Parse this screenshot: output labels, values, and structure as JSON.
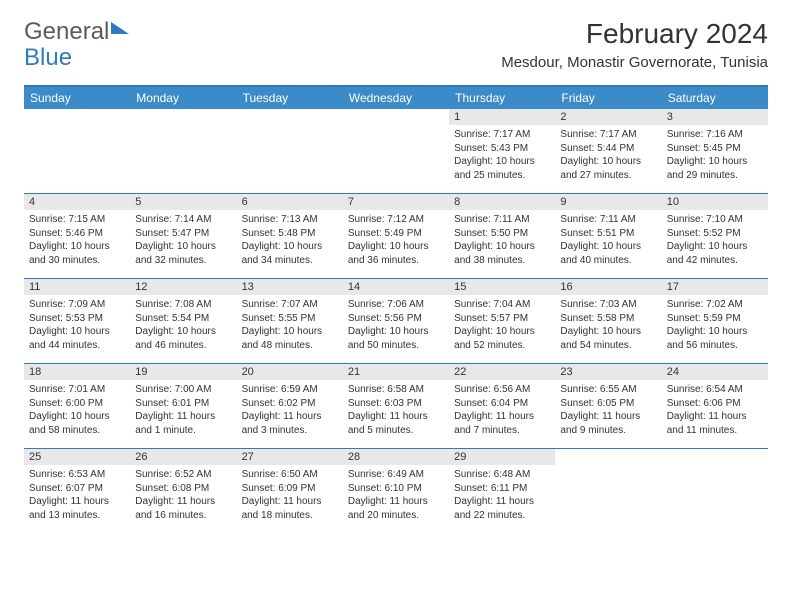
{
  "logo": {
    "text_gray": "General",
    "text_blue": "Blue"
  },
  "title": "February 2024",
  "location": "Mesdour, Monastir Governorate, Tunisia",
  "colors": {
    "header_bg": "#3b8bc9",
    "border": "#2f7bbf",
    "daynum_bg": "#e8e8e8",
    "text": "#333333",
    "logo_gray": "#5a5a5a"
  },
  "day_headers": [
    "Sunday",
    "Monday",
    "Tuesday",
    "Wednesday",
    "Thursday",
    "Friday",
    "Saturday"
  ],
  "weeks": [
    [
      {
        "n": "",
        "empty": true
      },
      {
        "n": "",
        "empty": true
      },
      {
        "n": "",
        "empty": true
      },
      {
        "n": "",
        "empty": true
      },
      {
        "n": "1",
        "sunrise": "7:17 AM",
        "sunset": "5:43 PM",
        "daylight": "10 hours and 25 minutes."
      },
      {
        "n": "2",
        "sunrise": "7:17 AM",
        "sunset": "5:44 PM",
        "daylight": "10 hours and 27 minutes."
      },
      {
        "n": "3",
        "sunrise": "7:16 AM",
        "sunset": "5:45 PM",
        "daylight": "10 hours and 29 minutes."
      }
    ],
    [
      {
        "n": "4",
        "sunrise": "7:15 AM",
        "sunset": "5:46 PM",
        "daylight": "10 hours and 30 minutes."
      },
      {
        "n": "5",
        "sunrise": "7:14 AM",
        "sunset": "5:47 PM",
        "daylight": "10 hours and 32 minutes."
      },
      {
        "n": "6",
        "sunrise": "7:13 AM",
        "sunset": "5:48 PM",
        "daylight": "10 hours and 34 minutes."
      },
      {
        "n": "7",
        "sunrise": "7:12 AM",
        "sunset": "5:49 PM",
        "daylight": "10 hours and 36 minutes."
      },
      {
        "n": "8",
        "sunrise": "7:11 AM",
        "sunset": "5:50 PM",
        "daylight": "10 hours and 38 minutes."
      },
      {
        "n": "9",
        "sunrise": "7:11 AM",
        "sunset": "5:51 PM",
        "daylight": "10 hours and 40 minutes."
      },
      {
        "n": "10",
        "sunrise": "7:10 AM",
        "sunset": "5:52 PM",
        "daylight": "10 hours and 42 minutes."
      }
    ],
    [
      {
        "n": "11",
        "sunrise": "7:09 AM",
        "sunset": "5:53 PM",
        "daylight": "10 hours and 44 minutes."
      },
      {
        "n": "12",
        "sunrise": "7:08 AM",
        "sunset": "5:54 PM",
        "daylight": "10 hours and 46 minutes."
      },
      {
        "n": "13",
        "sunrise": "7:07 AM",
        "sunset": "5:55 PM",
        "daylight": "10 hours and 48 minutes."
      },
      {
        "n": "14",
        "sunrise": "7:06 AM",
        "sunset": "5:56 PM",
        "daylight": "10 hours and 50 minutes."
      },
      {
        "n": "15",
        "sunrise": "7:04 AM",
        "sunset": "5:57 PM",
        "daylight": "10 hours and 52 minutes."
      },
      {
        "n": "16",
        "sunrise": "7:03 AM",
        "sunset": "5:58 PM",
        "daylight": "10 hours and 54 minutes."
      },
      {
        "n": "17",
        "sunrise": "7:02 AM",
        "sunset": "5:59 PM",
        "daylight": "10 hours and 56 minutes."
      }
    ],
    [
      {
        "n": "18",
        "sunrise": "7:01 AM",
        "sunset": "6:00 PM",
        "daylight": "10 hours and 58 minutes."
      },
      {
        "n": "19",
        "sunrise": "7:00 AM",
        "sunset": "6:01 PM",
        "daylight": "11 hours and 1 minute."
      },
      {
        "n": "20",
        "sunrise": "6:59 AM",
        "sunset": "6:02 PM",
        "daylight": "11 hours and 3 minutes."
      },
      {
        "n": "21",
        "sunrise": "6:58 AM",
        "sunset": "6:03 PM",
        "daylight": "11 hours and 5 minutes."
      },
      {
        "n": "22",
        "sunrise": "6:56 AM",
        "sunset": "6:04 PM",
        "daylight": "11 hours and 7 minutes."
      },
      {
        "n": "23",
        "sunrise": "6:55 AM",
        "sunset": "6:05 PM",
        "daylight": "11 hours and 9 minutes."
      },
      {
        "n": "24",
        "sunrise": "6:54 AM",
        "sunset": "6:06 PM",
        "daylight": "11 hours and 11 minutes."
      }
    ],
    [
      {
        "n": "25",
        "sunrise": "6:53 AM",
        "sunset": "6:07 PM",
        "daylight": "11 hours and 13 minutes."
      },
      {
        "n": "26",
        "sunrise": "6:52 AM",
        "sunset": "6:08 PM",
        "daylight": "11 hours and 16 minutes."
      },
      {
        "n": "27",
        "sunrise": "6:50 AM",
        "sunset": "6:09 PM",
        "daylight": "11 hours and 18 minutes."
      },
      {
        "n": "28",
        "sunrise": "6:49 AM",
        "sunset": "6:10 PM",
        "daylight": "11 hours and 20 minutes."
      },
      {
        "n": "29",
        "sunrise": "6:48 AM",
        "sunset": "6:11 PM",
        "daylight": "11 hours and 22 minutes."
      },
      {
        "n": "",
        "empty": true
      },
      {
        "n": "",
        "empty": true
      }
    ]
  ],
  "labels": {
    "sunrise": "Sunrise:",
    "sunset": "Sunset:",
    "daylight": "Daylight:"
  }
}
